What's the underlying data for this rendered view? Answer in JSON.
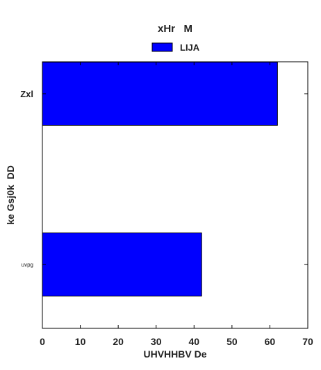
{
  "chart_data": {
    "type": "bar",
    "orientation": "horizontal",
    "title": "xHr   M",
    "xlabel": "UHVHHBV De",
    "ylabel": "ke Gsj0k  DD",
    "categories": [
      "Zxl",
      "uvpg"
    ],
    "series": [
      {
        "name": "LIJA",
        "values": [
          62,
          42
        ],
        "color": "#0000ff"
      }
    ],
    "xlim": [
      0,
      70
    ],
    "xticks": [
      0,
      10,
      20,
      30,
      40,
      50,
      60,
      70
    ],
    "grid": false,
    "legend_position": "top-center"
  }
}
